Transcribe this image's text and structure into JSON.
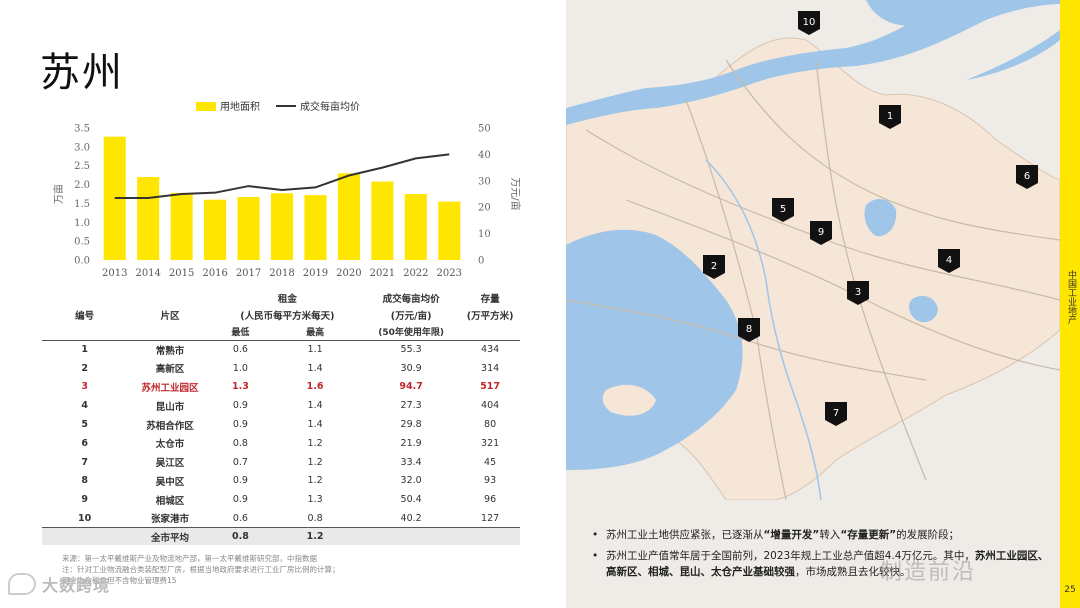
{
  "title": "苏州",
  "chart_data": {
    "type": "bar+line",
    "categories": [
      "2013",
      "2014",
      "2015",
      "2016",
      "2017",
      "2018",
      "2019",
      "2020",
      "2021",
      "2022",
      "2023"
    ],
    "series": [
      {
        "name": "用地面积",
        "type": "bar",
        "axis": "left",
        "values": [
          3.27,
          2.2,
          1.78,
          1.6,
          1.67,
          1.77,
          1.72,
          2.3,
          2.08,
          1.75,
          1.55
        ],
        "color": "#ffe600"
      },
      {
        "name": "成交每亩均价",
        "type": "line",
        "axis": "right",
        "values": [
          23.5,
          23.5,
          25,
          25.5,
          28,
          26.5,
          27.5,
          32,
          35,
          38.5,
          40
        ],
        "color": "#333333"
      }
    ],
    "ylabel_left": "万亩",
    "ylabel_right": "万元/亩",
    "ylim_left": [
      0,
      3.5
    ],
    "yticks_left": [
      "0.0",
      "0.5",
      "1.0",
      "1.5",
      "2.0",
      "2.5",
      "3.0",
      "3.5"
    ],
    "ylim_right": [
      0,
      50
    ],
    "yticks_right": [
      "0",
      "10",
      "20",
      "30",
      "40",
      "50"
    ],
    "legend_position": "top"
  },
  "table": {
    "headers": {
      "no": "编号",
      "district": "片区",
      "rent": "租金",
      "rent_unit": "(人民币每平方米每天)",
      "rent_low": "最低",
      "rent_high": "最高",
      "price": "成交每亩均价",
      "price_unit": "(万元/亩)",
      "price_note": "(50年使用年限)",
      "stock": "存量",
      "stock_unit": "(万平方米)"
    },
    "rows": [
      {
        "no": "1",
        "name": "常熟市",
        "low": "0.6",
        "high": "1.1",
        "price": "55.3",
        "stock": "434",
        "highlight": false
      },
      {
        "no": "2",
        "name": "高新区",
        "low": "1.0",
        "high": "1.4",
        "price": "30.9",
        "stock": "314",
        "highlight": false
      },
      {
        "no": "3",
        "name": "苏州工业园区",
        "low": "1.3",
        "high": "1.6",
        "price": "94.7",
        "stock": "517",
        "highlight": true
      },
      {
        "no": "4",
        "name": "昆山市",
        "low": "0.9",
        "high": "1.4",
        "price": "27.3",
        "stock": "404",
        "highlight": false
      },
      {
        "no": "5",
        "name": "苏相合作区",
        "low": "0.9",
        "high": "1.4",
        "price": "29.8",
        "stock": "80",
        "highlight": false
      },
      {
        "no": "6",
        "name": "太仓市",
        "low": "0.8",
        "high": "1.2",
        "price": "21.9",
        "stock": "321",
        "highlight": false
      },
      {
        "no": "7",
        "name": "吴江区",
        "low": "0.7",
        "high": "1.2",
        "price": "33.4",
        "stock": "45",
        "highlight": false
      },
      {
        "no": "8",
        "name": "吴中区",
        "low": "0.9",
        "high": "1.2",
        "price": "32.0",
        "stock": "93",
        "highlight": false
      },
      {
        "no": "9",
        "name": "相城区",
        "low": "0.9",
        "high": "1.3",
        "price": "50.4",
        "stock": "96",
        "highlight": false
      },
      {
        "no": "10",
        "name": "张家港市",
        "low": "0.6",
        "high": "0.8",
        "price": "40.2",
        "stock": "127",
        "highlight": false
      }
    ],
    "average": {
      "label": "全市平均",
      "low": "0.8",
      "high": "1.2"
    }
  },
  "notes": [
    "来源：第一太平戴维斯产业及物流地产部，第一太平戴维斯研究部，中指数据",
    "注：针对工业物流融合类装配型厂房，根据当地政府要求进行工业厂房比例的计算；",
    "租金为含税价但不含物业管理费15"
  ],
  "watermark_left": "大数跨境",
  "map": {
    "markers": [
      "10",
      "1",
      "6",
      "5",
      "9",
      "2",
      "4",
      "3",
      "8",
      "7"
    ],
    "water_color": "#9fc5e8",
    "land_color": "#f5e6d8",
    "bg_color": "#efece7"
  },
  "bullets": [
    {
      "parts": [
        {
          "t": "苏州工业土地供应紧张，已逐渐从",
          "b": false
        },
        {
          "t": "“增量开发”",
          "b": true
        },
        {
          "t": "转入",
          "b": false
        },
        {
          "t": "“存量更新”",
          "b": true
        },
        {
          "t": "的发展阶段；",
          "b": false
        }
      ]
    },
    {
      "parts": [
        {
          "t": "苏州工业产值常年居于全国前列，2023年规上工业总产值超4.4万亿元。其中，",
          "b": false
        },
        {
          "t": "苏州工业园区、高新区、相城、昆山、太仓产业基础较强",
          "b": true
        },
        {
          "t": "，市场成熟且去化较快。",
          "b": false
        }
      ]
    }
  ],
  "watermark_right": "制造前沿",
  "side_label": "中国工业地产",
  "page_number": "25",
  "accent_color": "#ffe600",
  "highlight_color": "#c0282d"
}
